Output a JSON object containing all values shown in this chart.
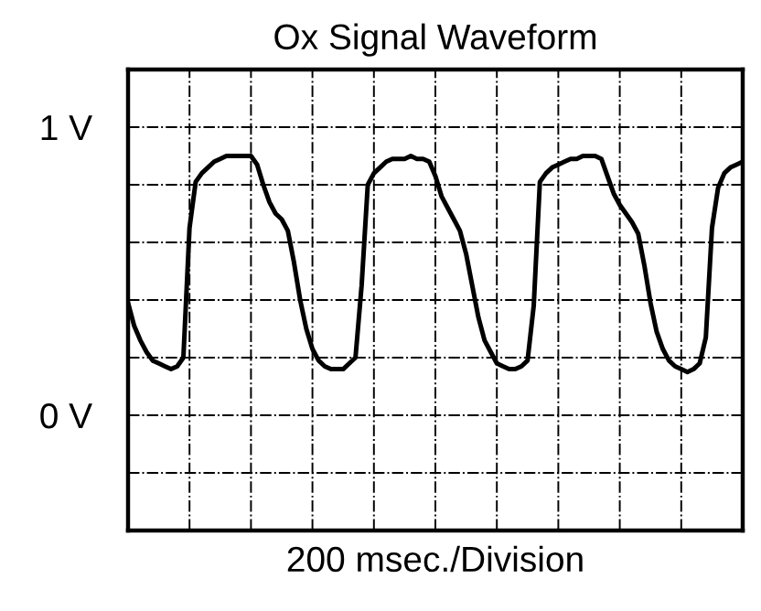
{
  "chart_data": {
    "type": "line",
    "title": "Ox Signal Waveform",
    "xlabel": "200 msec./Division",
    "categories": [
      null,
      null,
      null,
      null,
      null,
      null,
      null,
      null,
      null,
      null,
      null,
      null,
      null,
      null,
      null,
      null,
      null,
      null,
      null,
      null,
      null,
      null,
      null,
      null,
      null,
      null,
      null,
      null,
      null,
      null,
      null,
      null,
      null,
      null,
      null,
      null,
      null,
      null,
      null,
      null,
      null,
      null,
      null,
      null,
      null,
      null,
      null,
      null,
      null,
      null,
      null,
      null,
      null,
      null,
      null,
      null,
      null,
      null,
      null,
      null,
      null,
      null,
      null,
      null,
      null,
      null,
      null,
      null,
      null,
      null,
      null,
      null,
      null,
      null,
      null,
      null,
      null,
      null,
      null,
      null,
      null,
      null,
      null,
      null,
      null,
      null,
      null,
      null,
      null,
      null,
      null,
      null,
      null,
      null,
      null,
      null,
      null,
      null,
      null,
      null,
      null
    ],
    "series": [
      {
        "color": "#000000",
        "values": [
          0.39,
          0.31,
          0.26,
          0.22,
          0.19,
          0.18,
          0.17,
          0.16,
          0.17,
          0.2,
          0.65,
          0.81,
          0.84,
          0.86,
          0.88,
          0.89,
          0.9,
          0.9,
          0.9,
          0.9,
          0.9,
          0.87,
          0.8,
          0.74,
          0.7,
          0.68,
          0.64,
          0.53,
          0.4,
          0.3,
          0.23,
          0.19,
          0.17,
          0.16,
          0.16,
          0.16,
          0.18,
          0.2,
          0.45,
          0.8,
          0.84,
          0.86,
          0.88,
          0.89,
          0.89,
          0.89,
          0.9,
          0.89,
          0.89,
          0.88,
          0.83,
          0.76,
          0.72,
          0.68,
          0.64,
          0.56,
          0.45,
          0.34,
          0.26,
          0.22,
          0.18,
          0.17,
          0.16,
          0.16,
          0.17,
          0.19,
          0.38,
          0.81,
          0.84,
          0.86,
          0.87,
          0.88,
          0.89,
          0.89,
          0.9,
          0.9,
          0.9,
          0.89,
          0.83,
          0.77,
          0.73,
          0.7,
          0.67,
          0.63,
          0.52,
          0.39,
          0.29,
          0.23,
          0.19,
          0.17,
          0.16,
          0.15,
          0.16,
          0.18,
          0.27,
          0.65,
          0.79,
          0.84,
          0.86,
          0.87,
          0.88
        ]
      }
    ],
    "ylim": [
      -0.4,
      1.2
    ],
    "yticks": [
      {
        "value": -0.2,
        "label": null
      },
      {
        "value": 0,
        "label": "0 V"
      },
      {
        "value": 0.2,
        "label": null
      },
      {
        "value": 0.4,
        "label": null
      },
      {
        "value": 0.6,
        "label": null
      },
      {
        "value": 0.8,
        "label": null
      },
      {
        "value": 1,
        "label": "1 V"
      }
    ],
    "tick_labels": "y",
    "grid": true,
    "legend": false,
    "marker": "none",
    "line_style": "solid"
  }
}
